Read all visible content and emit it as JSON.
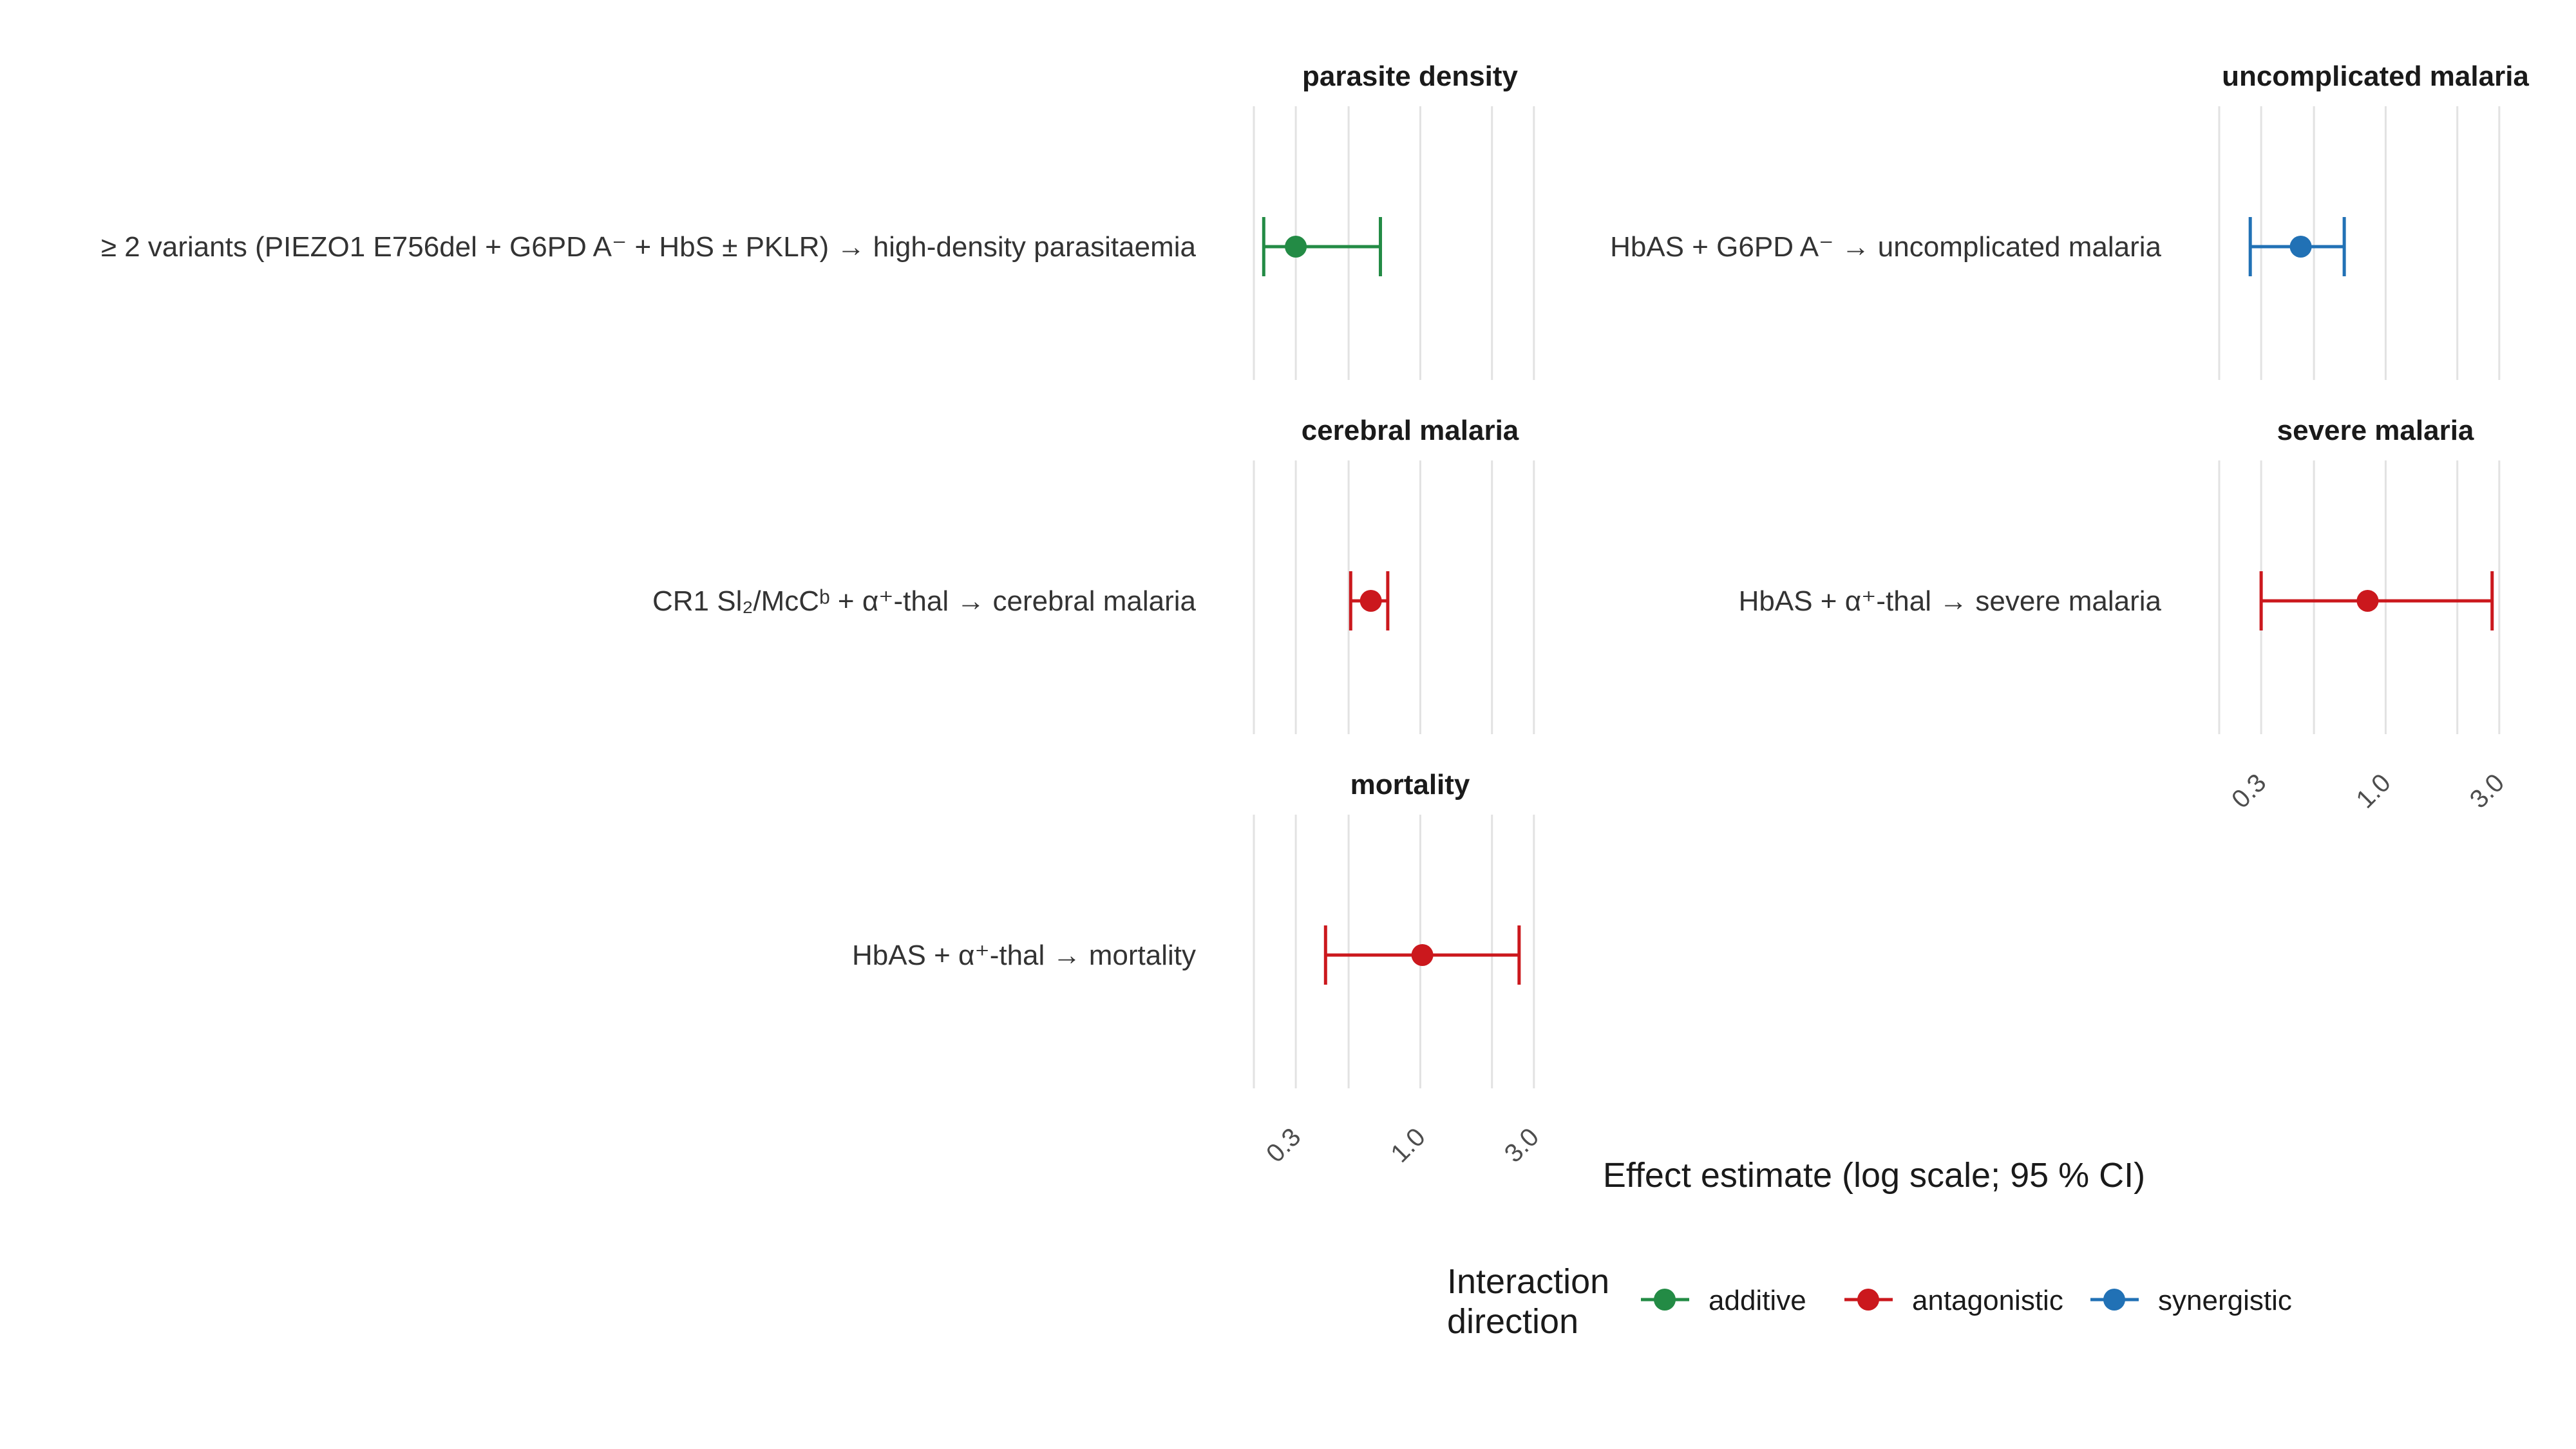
{
  "chart_data": {
    "type": "forest",
    "xlabel": "Effect estimate (log scale; 95 % CI)",
    "x_scale": "log",
    "xlim": [
      0.2,
      4.1
    ],
    "x_ticks": [
      0.3,
      1.0,
      3.0
    ],
    "x_tick_labels": [
      "0.3",
      "1.0",
      "3.0"
    ],
    "grid": true,
    "legend": {
      "title": "Interaction direction",
      "position": "bottom",
      "items": [
        {
          "label": "additive",
          "color": "#238b45"
        },
        {
          "label": "antagonistic",
          "color": "#cb181d"
        },
        {
          "label": "synergistic",
          "color": "#2171b5"
        }
      ]
    },
    "panels": [
      {
        "title": "parasite density",
        "label": "≥ 2 variants (PIEZO1 E756del + G6PD A⁻ + HbS ± PKLR) → high-density parasitaemia",
        "direction": "additive",
        "estimate": 0.3,
        "ci_low": 0.22,
        "ci_high": 0.68
      },
      {
        "title": "uncomplicated malaria",
        "label": "HbAS + G6PD A⁻ → uncomplicated malaria",
        "direction": "synergistic",
        "estimate": 0.44,
        "ci_low": 0.27,
        "ci_high": 0.67
      },
      {
        "title": "cerebral malaria",
        "label": "CR1 Sl₂/McCᵇ + α⁺-thal → cerebral malaria",
        "direction": "antagonistic",
        "estimate": 0.62,
        "ci_low": 0.51,
        "ci_high": 0.73
      },
      {
        "title": "severe malaria",
        "label": "HbAS + α⁺-thal → severe malaria",
        "direction": "antagonistic",
        "estimate": 0.84,
        "ci_low": 0.3,
        "ci_high": 2.8
      },
      {
        "title": "mortality",
        "label": "HbAS + α⁺-thal → mortality",
        "direction": "antagonistic",
        "estimate": 1.02,
        "ci_low": 0.4,
        "ci_high": 2.6
      }
    ]
  }
}
